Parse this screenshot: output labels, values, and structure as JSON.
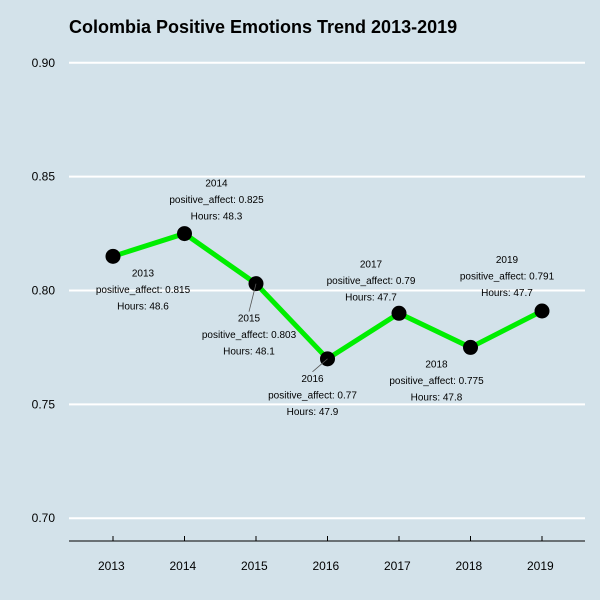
{
  "chart_data": {
    "type": "line",
    "title": "Colombia Positive Emotions Trend 2013-2019",
    "xlabel": "",
    "ylabel": "",
    "x": [
      "2013",
      "2014",
      "2015",
      "2016",
      "2017",
      "2018",
      "2019"
    ],
    "ylim": [
      0.69,
      0.91
    ],
    "yticks": [
      "0.70",
      "0.75",
      "0.80",
      "0.85",
      "0.90"
    ],
    "grid": "horizontal",
    "legend": "none",
    "series": [
      {
        "values": [
          0.815,
          0.825,
          0.803,
          0.77,
          0.79,
          0.775,
          0.791
        ],
        "hours": [
          48.6,
          48.3,
          48.1,
          47.9,
          47.7,
          47.8,
          47.7
        ]
      }
    ],
    "point_labels": [
      {
        "year": "2013",
        "affect": "positive_affect: 0.815",
        "hours": "Hours: 48.6"
      },
      {
        "year": "2014",
        "affect": "positive_affect: 0.825",
        "hours": "Hours: 48.3"
      },
      {
        "year": "2015",
        "affect": "positive_affect: 0.803",
        "hours": "Hours: 48.1"
      },
      {
        "year": "2016",
        "affect": "positive_affect: 0.77",
        "hours": "Hours: 47.9"
      },
      {
        "year": "2017",
        "affect": "positive_affect: 0.79",
        "hours": "Hours: 47.7"
      },
      {
        "year": "2018",
        "affect": "positive_affect: 0.775",
        "hours": "Hours: 47.8"
      },
      {
        "year": "2019",
        "affect": "positive_affect: 0.791",
        "hours": "Hours: 47.7"
      }
    ],
    "colors": {
      "background": "#d3e2ea",
      "line": "#00ee00",
      "point": "#000000",
      "grid": "#ffffff",
      "axis": "#000000"
    }
  }
}
